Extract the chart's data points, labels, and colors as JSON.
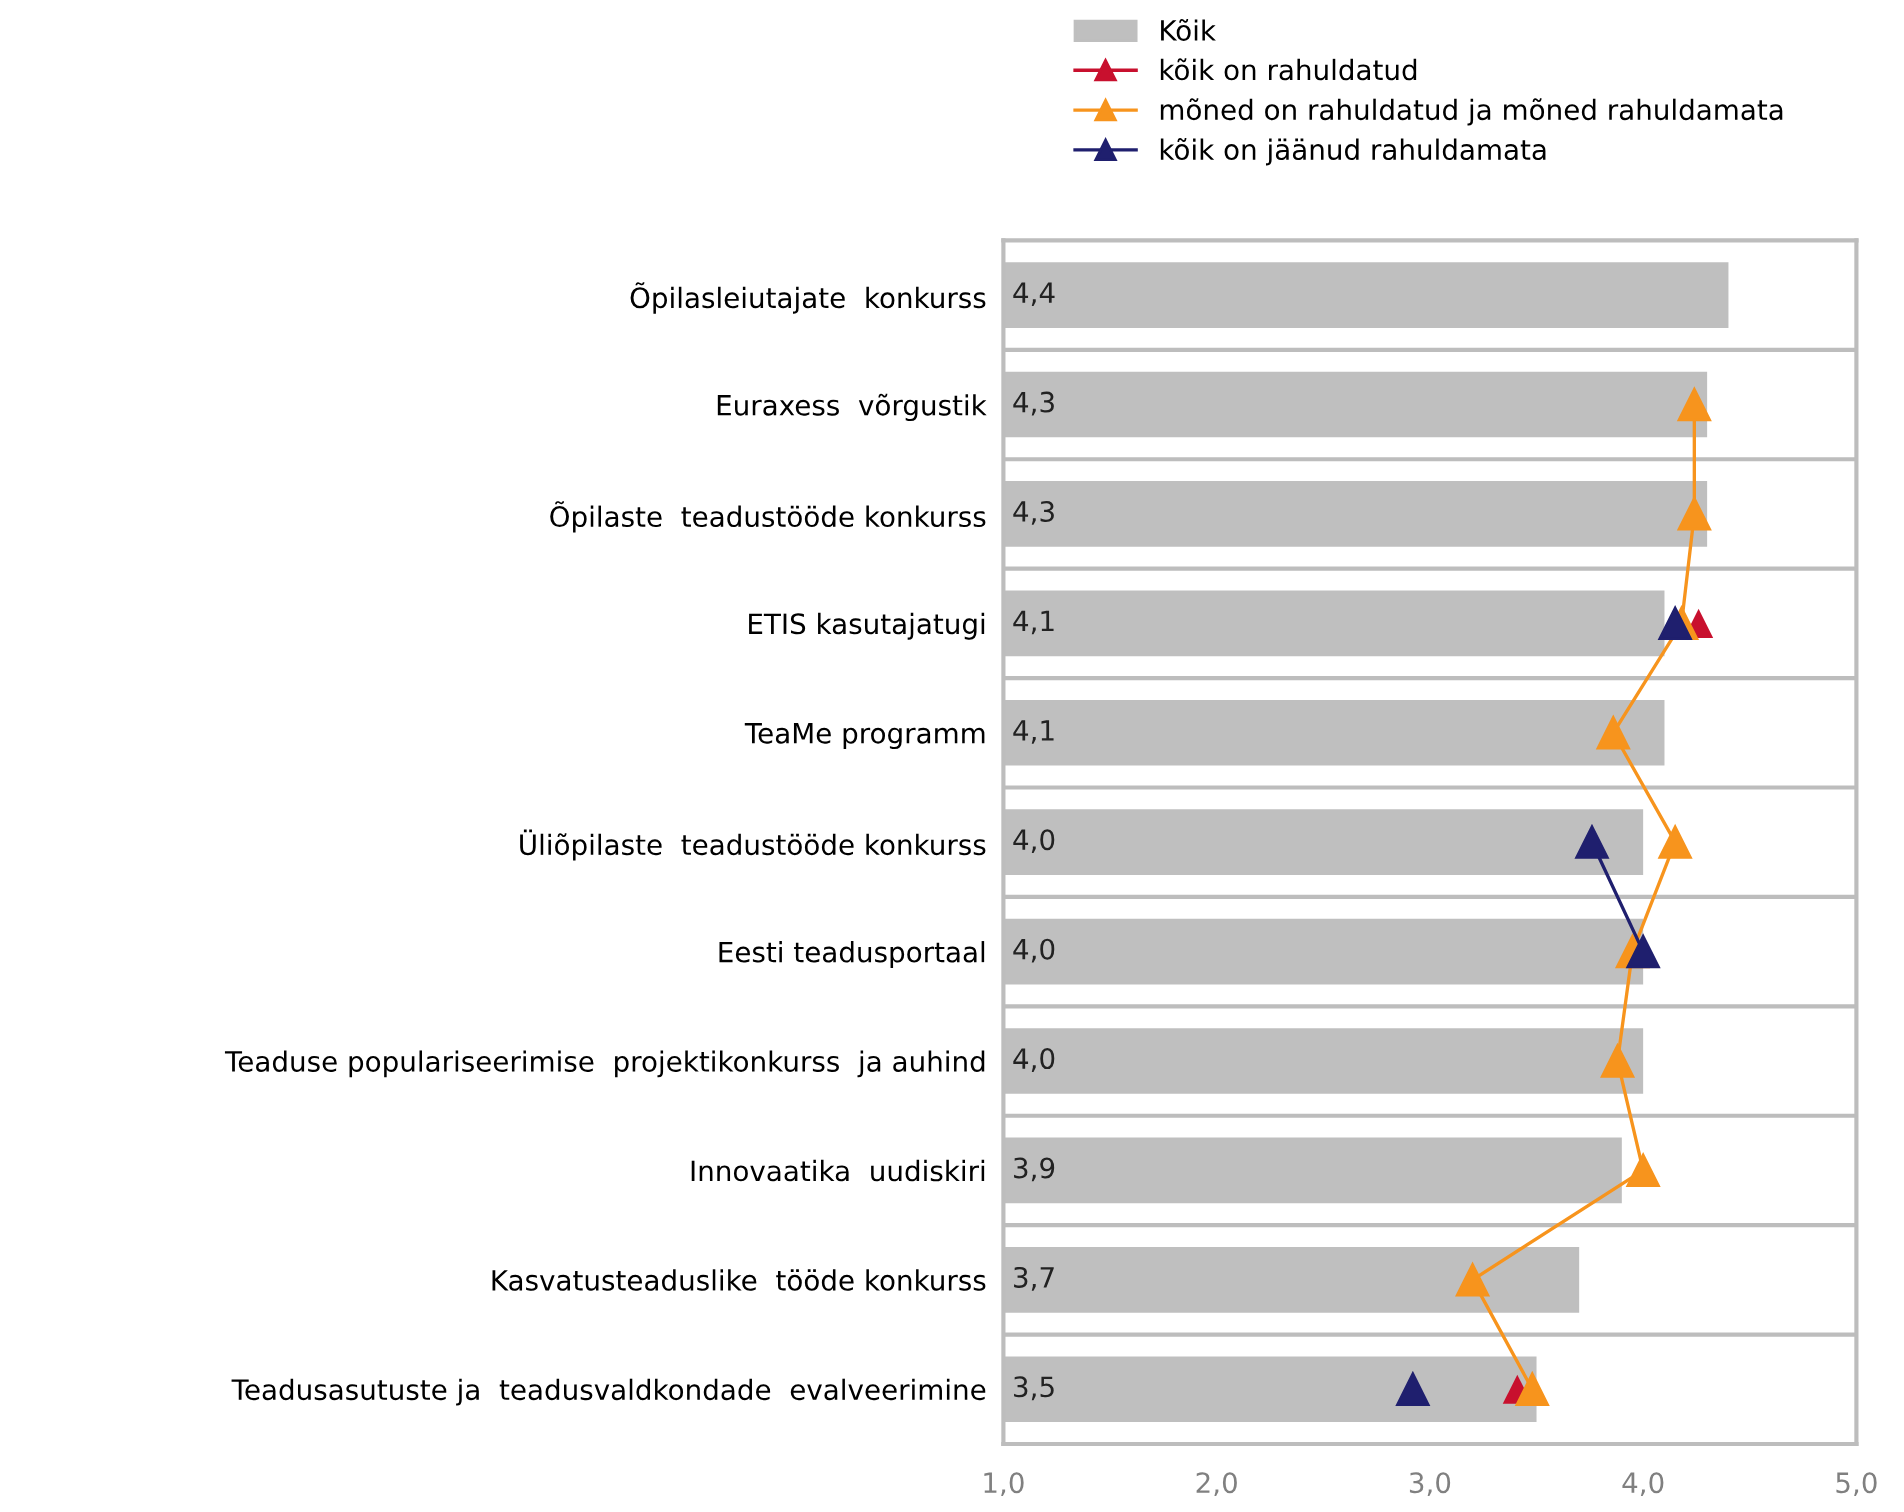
{
  "chart_data": {
    "type": "bar",
    "orientation": "horizontal",
    "categories": [
      "Õpilasleiutajate  konkurss",
      "Euraxess  võrgustik",
      "Õpilaste  teadustööde konkurss",
      "ETIS kasutajatugi",
      "TeaMe programm",
      "Üliõpilaste  teadustööde konkurss",
      "Eesti teadusportaal",
      "Teaduse populariseerimise  projektikonkurss  ja auhind",
      "Innovaatika  uudiskiri",
      "Kasvatusteaduslike  tööde konkurss",
      "Teadusasutuste ja  teadusvaldkondade  evalveerimine"
    ],
    "series": [
      {
        "name": "Kõik",
        "color": "#bfbfbf",
        "values": [
          4.4,
          4.3,
          4.3,
          4.1,
          4.1,
          4.0,
          4.0,
          4.0,
          3.9,
          3.7,
          3.5
        ],
        "value_labels": [
          "4,4",
          "4,3",
          "4,3",
          "4,1",
          "4,1",
          "4,0",
          "4,0",
          "4,0",
          "3,9",
          "3,7",
          "3,5"
        ]
      },
      {
        "name": "kõik on rahuldatud",
        "type": "scatter",
        "color": "#c8102e",
        "values": [
          null,
          null,
          null,
          4.26,
          null,
          null,
          null,
          null,
          null,
          null,
          3.41
        ]
      },
      {
        "name": "mõned on rahuldatud ja mõned rahuldamata",
        "type": "line",
        "color": "#f7941d",
        "values": [
          null,
          4.24,
          4.24,
          4.18,
          3.86,
          4.15,
          3.95,
          3.88,
          4.0,
          3.2,
          3.48
        ]
      },
      {
        "name": "kõik on jäänud rahuldamata",
        "type": "line",
        "color": "#1f1f6e",
        "values": [
          null,
          null,
          null,
          4.15,
          null,
          3.76,
          4.0,
          null,
          null,
          null,
          2.92
        ]
      }
    ],
    "xlim": [
      1,
      5
    ],
    "xticks": [
      {
        "value": 1,
        "label": "1,0"
      },
      {
        "value": 2,
        "label": "2,0"
      },
      {
        "value": 3,
        "label": "3,0"
      },
      {
        "value": 4,
        "label": "4,0"
      },
      {
        "value": 5,
        "label": "5,0"
      }
    ],
    "marker": "triangle",
    "grid": "y",
    "legend": "top"
  }
}
